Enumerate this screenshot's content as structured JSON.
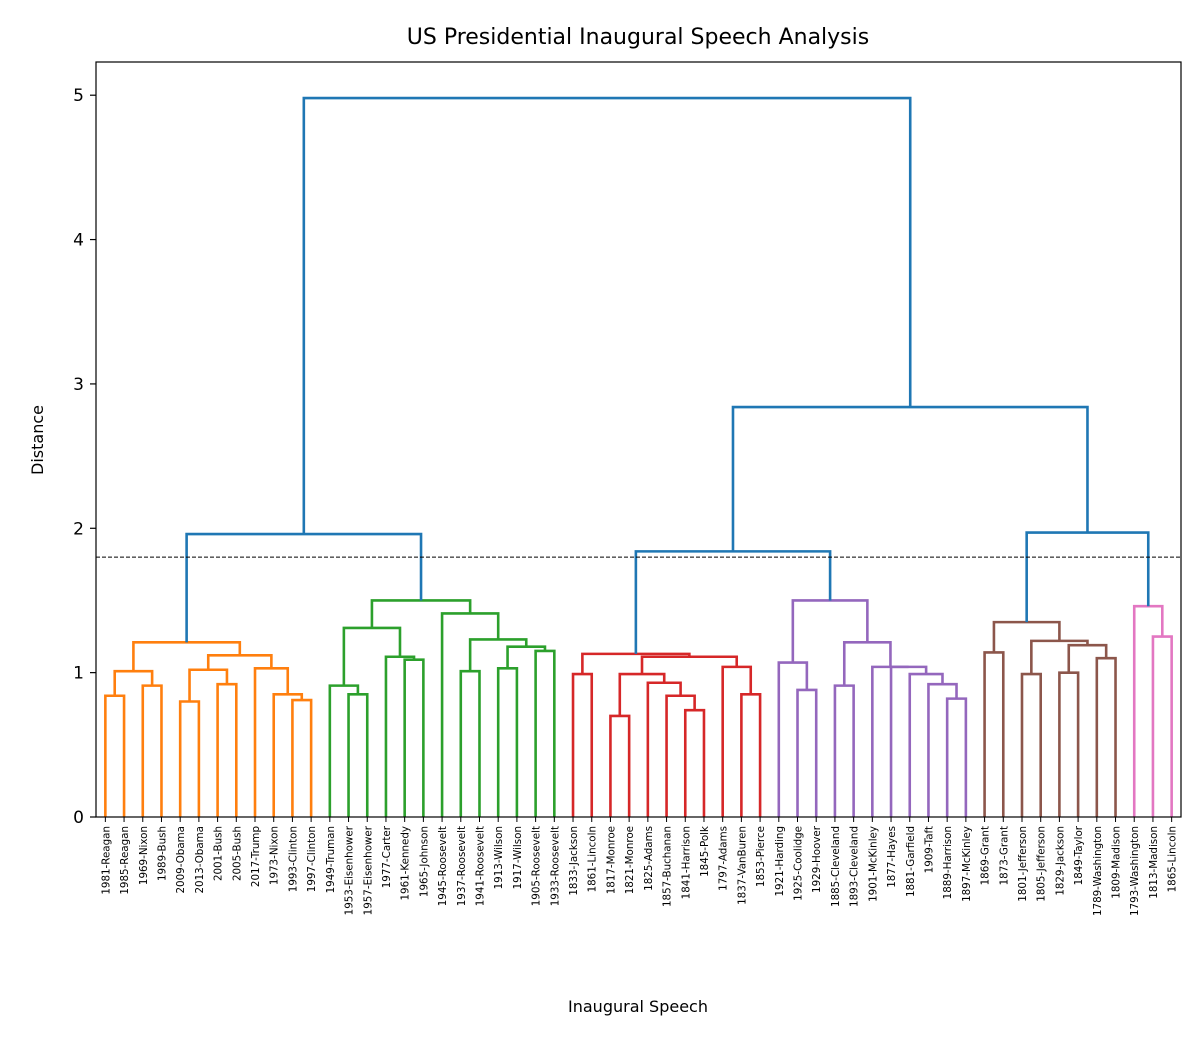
{
  "chart_data": {
    "type": "dendrogram",
    "title": "US Presidential Inaugural Speech Analysis",
    "xlabel": "Inaugural Speech",
    "ylabel": "Distance",
    "ylim": [
      0,
      5.2
    ],
    "yticks": [
      0,
      1,
      2,
      3,
      4,
      5
    ],
    "threshold": 1.8,
    "grid": false,
    "leaves": [
      "1981-Reagan",
      "1985-Reagan",
      "1969-Nixon",
      "1989-Bush",
      "2009-Obama",
      "2013-Obama",
      "2001-Bush",
      "2005-Bush",
      "2017-Trump",
      "1973-Nixon",
      "1993-Clinton",
      "1997-Clinton",
      "1949-Truman",
      "1953-Eisenhower",
      "1957-Eisenhower",
      "1977-Carter",
      "1961-Kennedy",
      "1965-Johnson",
      "1945-Roosevelt",
      "1937-Roosevelt",
      "1941-Roosevelt",
      "1913-Wilson",
      "1917-Wilson",
      "1905-Roosevelt",
      "1933-Roosevelt",
      "1833-Jackson",
      "1861-Lincoln",
      "1817-Monroe",
      "1821-Monroe",
      "1825-Adams",
      "1857-Buchanan",
      "1841-Harrison",
      "1845-Polk",
      "1797-Adams",
      "1837-VanBuren",
      "1853-Pierce",
      "1921-Harding",
      "1925-Coolidge",
      "1929-Hoover",
      "1885-Cleveland",
      "1893-Cleveland",
      "1901-McKinley",
      "1877-Hayes",
      "1881-Garfield",
      "1909-Taft",
      "1889-Harrison",
      "1897-McKinley",
      "1869-Grant",
      "1873-Grant",
      "1801-Jefferson",
      "1805-Jefferson",
      "1829-Jackson",
      "1849-Taylor",
      "1789-Washington",
      "1809-Madison",
      "1793-Washington",
      "1813-Madison",
      "1865-Lincoln"
    ],
    "cluster_colors": {
      "orange": "#ff7f0e",
      "green": "#2ca02c",
      "red": "#d62728",
      "purple": "#9467bd",
      "brown": "#8c564b",
      "pink": "#e377c2",
      "above_threshold": "#1f77b4",
      "threshold_line": "#000000"
    },
    "merges": [
      {
        "a": "L0",
        "b": "L1",
        "h": 0.84,
        "color": "orange"
      },
      {
        "a": "L2",
        "b": "L3",
        "h": 0.91,
        "color": "orange"
      },
      {
        "a": 0,
        "b": 1,
        "h": 1.01,
        "color": "orange"
      },
      {
        "a": "L4",
        "b": "L5",
        "h": 0.8,
        "color": "orange"
      },
      {
        "a": "L6",
        "b": "L7",
        "h": 0.92,
        "color": "orange"
      },
      {
        "a": 3,
        "b": 4,
        "h": 1.02,
        "color": "orange"
      },
      {
        "a": "L10",
        "b": "L11",
        "h": 0.81,
        "color": "orange"
      },
      {
        "a": "L9",
        "b": 6,
        "h": 0.85,
        "color": "orange"
      },
      {
        "a": "L8",
        "b": 7,
        "h": 1.03,
        "color": "orange"
      },
      {
        "a": 5,
        "b": 8,
        "h": 1.12,
        "color": "orange"
      },
      {
        "a": 2,
        "b": 9,
        "h": 1.21,
        "color": "orange"
      },
      {
        "a": "L13",
        "b": "L14",
        "h": 0.85,
        "color": "green"
      },
      {
        "a": "L12",
        "b": 11,
        "h": 0.91,
        "color": "green"
      },
      {
        "a": "L16",
        "b": "L17",
        "h": 1.09,
        "color": "green"
      },
      {
        "a": "L15",
        "b": 13,
        "h": 1.11,
        "color": "green"
      },
      {
        "a": 12,
        "b": 14,
        "h": 1.31,
        "color": "green"
      },
      {
        "a": "L19",
        "b": "L20",
        "h": 1.01,
        "color": "green"
      },
      {
        "a": "L21",
        "b": "L22",
        "h": 1.03,
        "color": "green"
      },
      {
        "a": "L23",
        "b": "L24",
        "h": 1.15,
        "color": "green"
      },
      {
        "a": 17,
        "b": 18,
        "h": 1.18,
        "color": "green"
      },
      {
        "a": 16,
        "b": 19,
        "h": 1.23,
        "color": "green"
      },
      {
        "a": "L18",
        "b": 20,
        "h": 1.41,
        "color": "green"
      },
      {
        "a": 15,
        "b": 21,
        "h": 1.5,
        "color": "green"
      },
      {
        "a": 10,
        "b": 22,
        "h": 1.96,
        "color": "above_threshold"
      },
      {
        "a": "L25",
        "b": "L26",
        "h": 0.99,
        "color": "red"
      },
      {
        "a": "L27",
        "b": "L28",
        "h": 0.7,
        "color": "red"
      },
      {
        "a": "L31",
        "b": "L32",
        "h": 0.74,
        "color": "red"
      },
      {
        "a": "L30",
        "b": 26,
        "h": 0.84,
        "color": "red"
      },
      {
        "a": "L29",
        "b": 27,
        "h": 0.93,
        "color": "red"
      },
      {
        "a": 25,
        "b": 28,
        "h": 0.99,
        "color": "red"
      },
      {
        "a": "L34",
        "b": "L35",
        "h": 0.85,
        "color": "red"
      },
      {
        "a": "L33",
        "b": 30,
        "h": 1.04,
        "color": "red"
      },
      {
        "a": 29,
        "b": 31,
        "h": 1.11,
        "color": "red"
      },
      {
        "a": 24,
        "b": 32,
        "h": 1.13,
        "color": "red"
      },
      {
        "a": "L37",
        "b": "L38",
        "h": 0.88,
        "color": "purple"
      },
      {
        "a": "L36",
        "b": 34,
        "h": 1.07,
        "color": "purple"
      },
      {
        "a": "L39",
        "b": "L40",
        "h": 0.91,
        "color": "purple"
      },
      {
        "a": "L45",
        "b": "L46",
        "h": 0.82,
        "color": "purple"
      },
      {
        "a": "L44",
        "b": 37,
        "h": 0.92,
        "color": "purple"
      },
      {
        "a": "L43",
        "b": 38,
        "h": 0.99,
        "color": "purple"
      },
      {
        "a": "L42",
        "b": 39,
        "h": 1.04,
        "color": "purple"
      },
      {
        "a": "L41",
        "b": 40,
        "h": 1.04,
        "color": "purple"
      },
      {
        "a": 36,
        "b": 41,
        "h": 1.21,
        "color": "purple"
      },
      {
        "a": 35,
        "b": 42,
        "h": 1.5,
        "color": "purple"
      },
      {
        "a": 33,
        "b": 43,
        "h": 1.84,
        "color": "above_threshold"
      },
      {
        "a": "L47",
        "b": "L48",
        "h": 1.14,
        "color": "brown"
      },
      {
        "a": "L49",
        "b": "L50",
        "h": 0.99,
        "color": "brown"
      },
      {
        "a": "L51",
        "b": "L52",
        "h": 1.0,
        "color": "brown"
      },
      {
        "a": "L53",
        "b": "L54",
        "h": 1.1,
        "color": "brown"
      },
      {
        "a": 47,
        "b": 48,
        "h": 1.19,
        "color": "brown"
      },
      {
        "a": 46,
        "b": 49,
        "h": 1.22,
        "color": "brown"
      },
      {
        "a": 45,
        "b": 50,
        "h": 1.35,
        "color": "brown"
      },
      {
        "a": "L56",
        "b": "L57",
        "h": 1.25,
        "color": "pink"
      },
      {
        "a": "L55",
        "b": 52,
        "h": 1.46,
        "color": "pink"
      },
      {
        "a": 51,
        "b": 53,
        "h": 1.97,
        "color": "above_threshold"
      },
      {
        "a": 44,
        "b": 54,
        "h": 2.84,
        "color": "above_threshold"
      },
      {
        "a": 23,
        "b": 55,
        "h": 4.98,
        "color": "above_threshold"
      }
    ]
  }
}
